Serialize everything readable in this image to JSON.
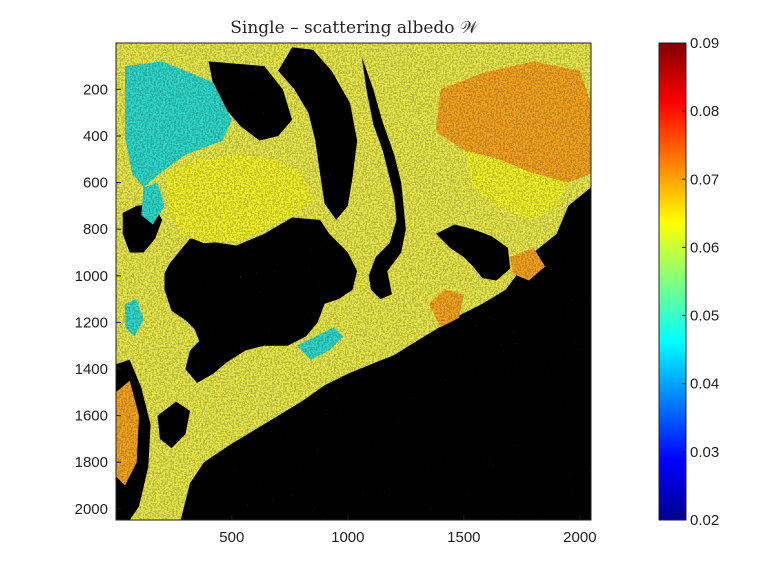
{
  "chart_data": {
    "type": "heatmap",
    "title": "Single – scattering albedo 𝒲",
    "xlabel": "",
    "ylabel": "",
    "xlim": [
      1,
      2048
    ],
    "ylim": [
      1,
      2048
    ],
    "y_reversed": true,
    "x_ticks": [
      "500",
      "1000",
      "1500",
      "2000"
    ],
    "x_tick_values": [
      500,
      1000,
      1500,
      2000
    ],
    "y_ticks": [
      "200",
      "400",
      "600",
      "800",
      "1000",
      "1200",
      "1400",
      "1600",
      "1800",
      "2000"
    ],
    "y_tick_values": [
      200,
      400,
      600,
      800,
      1000,
      1200,
      1400,
      1600,
      1800,
      2000
    ],
    "colorbar": {
      "colormap": "jet",
      "min": 0.02,
      "max": 0.09,
      "ticks": [
        "0.02",
        "0.03",
        "0.04",
        "0.05",
        "0.06",
        "0.07",
        "0.08",
        "0.09"
      ],
      "tick_values": [
        0.02,
        0.03,
        0.04,
        0.05,
        0.06,
        0.07,
        0.08,
        0.09
      ]
    },
    "no_data_color": "#000000",
    "regions": [
      {
        "kind": "dark",
        "points": [
          [
            230,
            950
          ],
          [
            320,
            840
          ],
          [
            520,
            870
          ],
          [
            640,
            820
          ],
          [
            760,
            750
          ],
          [
            880,
            760
          ],
          [
            920,
            820
          ],
          [
            1000,
            900
          ],
          [
            1040,
            980
          ],
          [
            1020,
            1060
          ],
          [
            960,
            1100
          ],
          [
            900,
            1120
          ],
          [
            870,
            1200
          ],
          [
            820,
            1260
          ],
          [
            740,
            1300
          ],
          [
            640,
            1300
          ],
          [
            560,
            1320
          ],
          [
            480,
            1370
          ],
          [
            420,
            1420
          ],
          [
            350,
            1460
          ],
          [
            300,
            1400
          ],
          [
            320,
            1320
          ],
          [
            360,
            1280
          ],
          [
            340,
            1230
          ],
          [
            300,
            1190
          ],
          [
            240,
            1150
          ],
          [
            210,
            1060
          ],
          [
            210,
            990
          ]
        ]
      },
      {
        "kind": "dark",
        "points": [
          [
            2048,
            620
          ],
          [
            1950,
            700
          ],
          [
            1900,
            820
          ],
          [
            1800,
            900
          ],
          [
            1740,
            980
          ],
          [
            1680,
            1060
          ],
          [
            1580,
            1120
          ],
          [
            1460,
            1180
          ],
          [
            1380,
            1230
          ],
          [
            1280,
            1290
          ],
          [
            1200,
            1340
          ],
          [
            1100,
            1380
          ],
          [
            1000,
            1420
          ],
          [
            900,
            1470
          ],
          [
            800,
            1540
          ],
          [
            700,
            1600
          ],
          [
            600,
            1660
          ],
          [
            500,
            1720
          ],
          [
            380,
            1800
          ],
          [
            320,
            1890
          ],
          [
            280,
            2048
          ],
          [
            2048,
            2048
          ]
        ]
      },
      {
        "kind": "dark",
        "points": [
          [
            760,
            20
          ],
          [
            850,
            30
          ],
          [
            930,
            120
          ],
          [
            1010,
            260
          ],
          [
            1040,
            420
          ],
          [
            1020,
            580
          ],
          [
            1000,
            700
          ],
          [
            950,
            760
          ],
          [
            900,
            690
          ],
          [
            880,
            560
          ],
          [
            860,
            420
          ],
          [
            830,
            300
          ],
          [
            770,
            200
          ],
          [
            700,
            120
          ]
        ]
      },
      {
        "kind": "dark",
        "points": [
          [
            1060,
            60
          ],
          [
            1080,
            200
          ],
          [
            1110,
            350
          ],
          [
            1150,
            460
          ],
          [
            1180,
            580
          ],
          [
            1200,
            660
          ],
          [
            1210,
            760
          ],
          [
            1180,
            860
          ],
          [
            1120,
            920
          ],
          [
            1090,
            1000
          ],
          [
            1100,
            1060
          ],
          [
            1140,
            1100
          ],
          [
            1190,
            1080
          ],
          [
            1170,
            980
          ],
          [
            1230,
            900
          ],
          [
            1250,
            800
          ],
          [
            1240,
            700
          ],
          [
            1230,
            600
          ],
          [
            1200,
            480
          ],
          [
            1150,
            340
          ],
          [
            1110,
            200
          ]
        ]
      },
      {
        "kind": "dark",
        "points": [
          [
            400,
            80
          ],
          [
            520,
            90
          ],
          [
            640,
            100
          ],
          [
            720,
            200
          ],
          [
            760,
            330
          ],
          [
            700,
            400
          ],
          [
            620,
            420
          ],
          [
            540,
            360
          ],
          [
            470,
            280
          ],
          [
            420,
            180
          ]
        ]
      },
      {
        "kind": "dark",
        "points": [
          [
            1380,
            820
          ],
          [
            1460,
            780
          ],
          [
            1540,
            800
          ],
          [
            1620,
            830
          ],
          [
            1690,
            880
          ],
          [
            1700,
            970
          ],
          [
            1640,
            1020
          ],
          [
            1580,
            1010
          ],
          [
            1540,
            960
          ],
          [
            1500,
            920
          ],
          [
            1440,
            880
          ]
        ]
      },
      {
        "kind": "dark",
        "points": [
          [
            30,
            730
          ],
          [
            90,
            700
          ],
          [
            160,
            690
          ],
          [
            200,
            760
          ],
          [
            170,
            840
          ],
          [
            120,
            900
          ],
          [
            60,
            900
          ],
          [
            30,
            820
          ]
        ]
      },
      {
        "kind": "dark",
        "points": [
          [
            0,
            1380
          ],
          [
            60,
            1360
          ],
          [
            110,
            1480
          ],
          [
            150,
            1640
          ],
          [
            140,
            1820
          ],
          [
            100,
            1990
          ],
          [
            60,
            2048
          ],
          [
            0,
            2048
          ]
        ]
      },
      {
        "kind": "dark",
        "points": [
          [
            180,
            1600
          ],
          [
            260,
            1540
          ],
          [
            320,
            1580
          ],
          [
            300,
            1680
          ],
          [
            240,
            1740
          ],
          [
            190,
            1700
          ]
        ]
      },
      {
        "kind": "cool",
        "points": [
          [
            40,
            100
          ],
          [
            200,
            80
          ],
          [
            420,
            170
          ],
          [
            500,
            330
          ],
          [
            460,
            420
          ],
          [
            300,
            480
          ],
          [
            190,
            560
          ],
          [
            120,
            620
          ],
          [
            70,
            560
          ],
          [
            40,
            400
          ]
        ]
      },
      {
        "kind": "cool",
        "points": [
          [
            120,
            620
          ],
          [
            180,
            600
          ],
          [
            210,
            700
          ],
          [
            160,
            780
          ],
          [
            110,
            740
          ]
        ]
      },
      {
        "kind": "cool",
        "points": [
          [
            780,
            1300
          ],
          [
            860,
            1260
          ],
          [
            940,
            1220
          ],
          [
            980,
            1260
          ],
          [
            920,
            1320
          ],
          [
            840,
            1360
          ]
        ]
      },
      {
        "kind": "cool",
        "points": [
          [
            40,
            1120
          ],
          [
            90,
            1100
          ],
          [
            120,
            1190
          ],
          [
            80,
            1260
          ],
          [
            40,
            1220
          ]
        ]
      },
      {
        "kind": "bright",
        "points": [
          [
            220,
            560
          ],
          [
            360,
            500
          ],
          [
            520,
            480
          ],
          [
            680,
            500
          ],
          [
            800,
            560
          ],
          [
            850,
            680
          ],
          [
            760,
            740
          ],
          [
            640,
            800
          ],
          [
            520,
            850
          ],
          [
            380,
            860
          ],
          [
            280,
            820
          ],
          [
            230,
            720
          ]
        ]
      },
      {
        "kind": "bright",
        "points": [
          [
            1500,
            420
          ],
          [
            1700,
            400
          ],
          [
            1860,
            440
          ],
          [
            1960,
            560
          ],
          [
            1900,
            700
          ],
          [
            1780,
            760
          ],
          [
            1640,
            700
          ],
          [
            1540,
            620
          ]
        ]
      },
      {
        "kind": "warm",
        "points": [
          [
            1400,
            200
          ],
          [
            1580,
            130
          ],
          [
            1800,
            80
          ],
          [
            2000,
            120
          ],
          [
            2048,
            260
          ],
          [
            2048,
            560
          ],
          [
            1950,
            600
          ],
          [
            1800,
            560
          ],
          [
            1650,
            500
          ],
          [
            1500,
            460
          ],
          [
            1380,
            380
          ]
        ]
      },
      {
        "kind": "warm",
        "points": [
          [
            1350,
            1120
          ],
          [
            1420,
            1060
          ],
          [
            1500,
            1080
          ],
          [
            1480,
            1180
          ],
          [
            1400,
            1220
          ]
        ]
      },
      {
        "kind": "warm",
        "points": [
          [
            1700,
            920
          ],
          [
            1800,
            880
          ],
          [
            1850,
            960
          ],
          [
            1780,
            1020
          ],
          [
            1710,
            990
          ]
        ]
      },
      {
        "kind": "warm",
        "points": [
          [
            0,
            1500
          ],
          [
            60,
            1450
          ],
          [
            100,
            1600
          ],
          [
            90,
            1800
          ],
          [
            40,
            1900
          ],
          [
            0,
            1860
          ]
        ]
      }
    ]
  }
}
